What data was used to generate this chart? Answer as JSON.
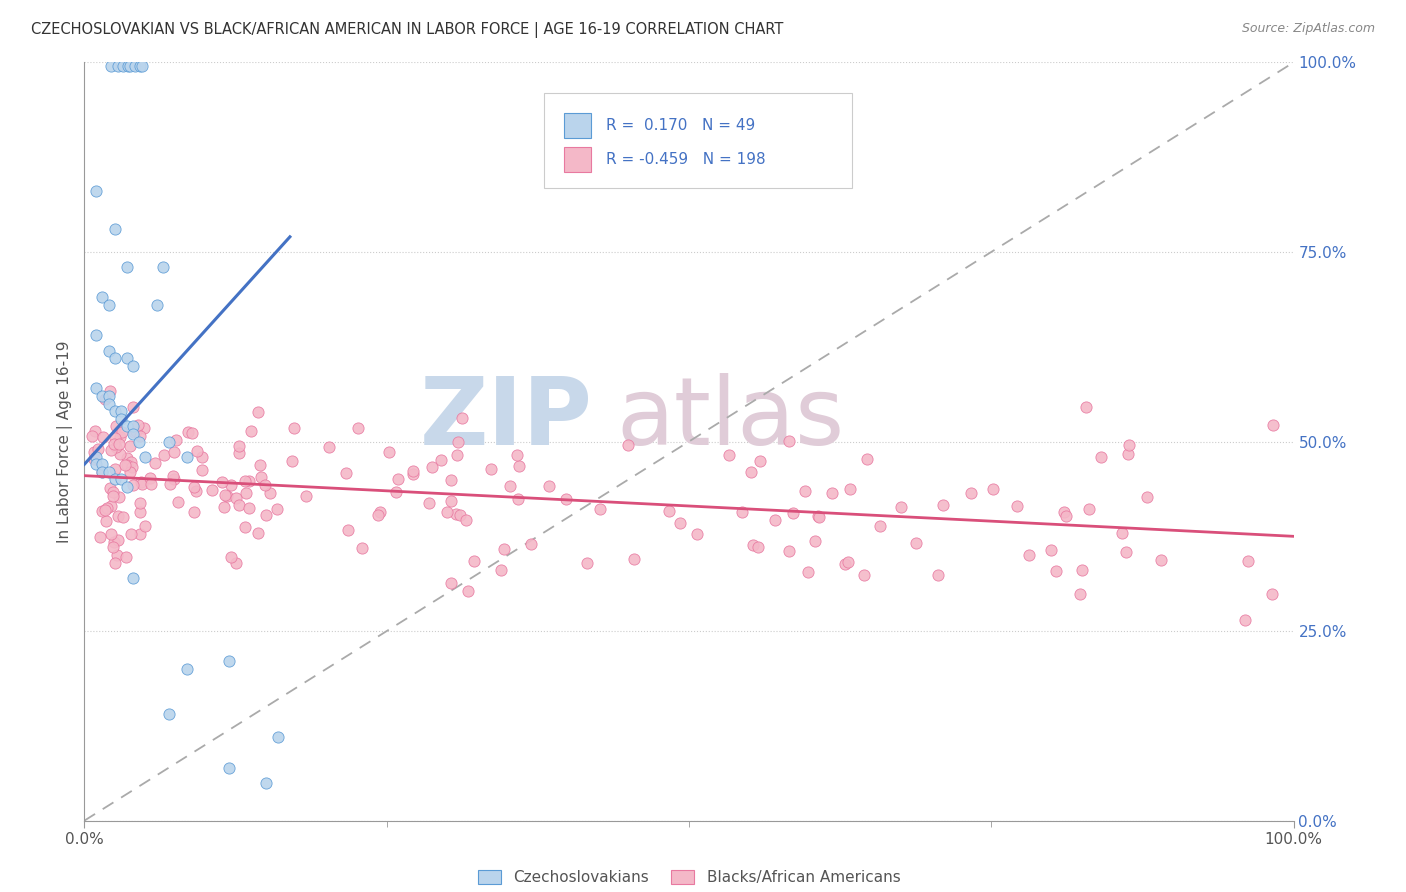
{
  "title": "CZECHOSLOVAKIAN VS BLACK/AFRICAN AMERICAN IN LABOR FORCE | AGE 16-19 CORRELATION CHART",
  "source": "Source: ZipAtlas.com",
  "ylabel": "In Labor Force | Age 16-19",
  "ytick_labels": [
    "0.0%",
    "25.0%",
    "50.0%",
    "75.0%",
    "100.0%"
  ],
  "ytick_values": [
    0.0,
    0.25,
    0.5,
    0.75,
    1.0
  ],
  "xtick_labels": [
    "0.0%",
    "100.0%"
  ],
  "xtick_values": [
    0.0,
    1.0
  ],
  "xlim": [
    0.0,
    1.0
  ],
  "ylim": [
    0.0,
    1.0
  ],
  "legend_r_czech": "0.170",
  "legend_n_czech": "49",
  "legend_r_black": "-0.459",
  "legend_n_black": "198",
  "color_czech_fill": "#bad4ec",
  "color_czech_edge": "#5b9bd5",
  "color_czech_line": "#4472c4",
  "color_black_fill": "#f4b8c8",
  "color_black_edge": "#e879a0",
  "color_black_line": "#d94f7a",
  "color_diagonal": "#aaaaaa",
  "color_grid": "#cccccc",
  "watermark_zip": "ZIP",
  "watermark_atlas": "atlas",
  "watermark_color_zip": "#c5d5e8",
  "watermark_color_atlas": "#d8c8d0",
  "background_color": "#ffffff",
  "czech_trend_x0": 0.0,
  "czech_trend_y0": 0.47,
  "czech_trend_x1": 0.17,
  "czech_trend_y1": 0.77,
  "black_trend_x0": 0.0,
  "black_trend_y0": 0.455,
  "black_trend_x1": 1.0,
  "black_trend_y1": 0.375
}
